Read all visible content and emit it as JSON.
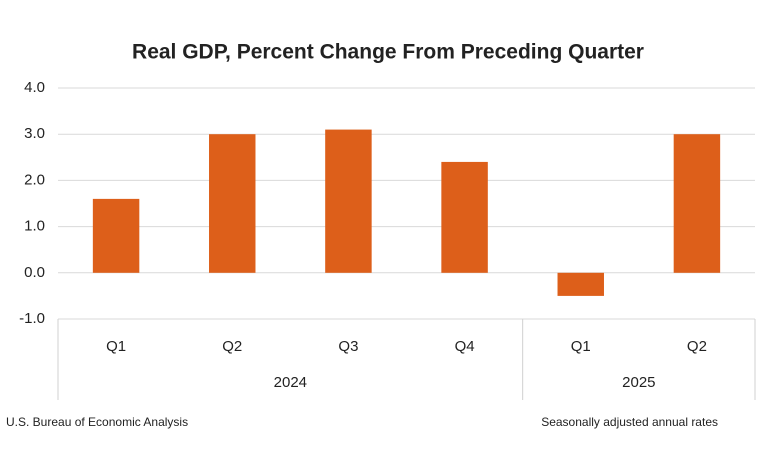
{
  "chart_data": {
    "type": "bar",
    "title": "Real GDP, Percent Change From Preceding Quarter",
    "groups": [
      {
        "name": "2024",
        "categories": [
          "Q1",
          "Q2",
          "Q3",
          "Q4"
        ],
        "values": [
          1.6,
          3.0,
          3.1,
          2.4
        ]
      },
      {
        "name": "2025",
        "categories": [
          "Q1",
          "Q2"
        ],
        "values": [
          -0.5,
          3.0
        ]
      }
    ],
    "color": "#dd5f1a",
    "ylim": [
      -1,
      4
    ],
    "yticks": [
      {
        "value": -1,
        "label": "-1.0"
      },
      {
        "value": 0,
        "label": "0.0"
      },
      {
        "value": 1,
        "label": "1.0"
      },
      {
        "value": 2,
        "label": "2.0"
      },
      {
        "value": 3,
        "label": "3.0"
      },
      {
        "value": 4,
        "label": "4.0"
      }
    ],
    "grid": true,
    "source": "U.S. Bureau of Economic Analysis",
    "note": "Seasonally adjusted annual rates"
  }
}
